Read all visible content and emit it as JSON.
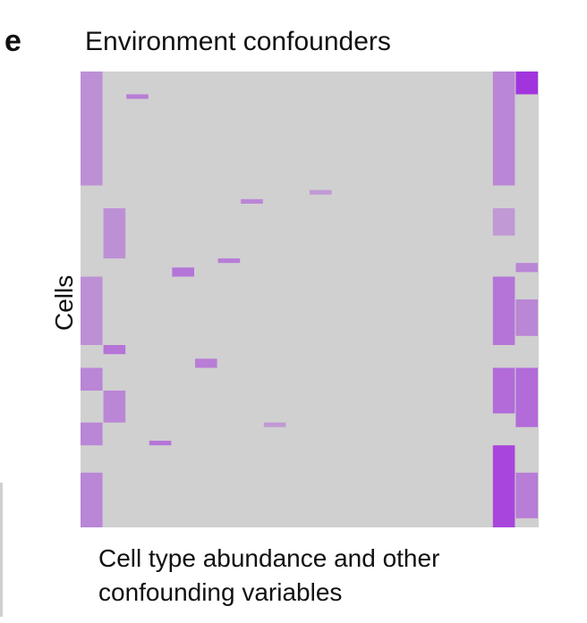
{
  "panel_letter": "e",
  "title": "Environment confounders",
  "ylabel": "Cells",
  "xlabel": [
    "Cell type abundance and other",
    "confounding variables"
  ],
  "colors": {
    "background": "#d0d0d0",
    "low": "#d8b6e8",
    "mid": "#c890e0",
    "high": "#9a18e0"
  },
  "chart_data": {
    "type": "heatmap",
    "title": "Environment confounders",
    "xlabel": "Cell type abundance and other confounding variables",
    "ylabel": "Cells",
    "n_rows": 100,
    "n_cols": 20,
    "value_range": [
      0,
      1
    ],
    "blocks": [
      {
        "col": 0,
        "rows": [
          0,
          25
        ],
        "value": 0.35
      },
      {
        "col": 1,
        "rows": [
          30,
          41
        ],
        "value": 0.35
      },
      {
        "col": 0,
        "rows": [
          45,
          60
        ],
        "value": 0.35
      },
      {
        "col": 1,
        "rows": [
          60,
          62
        ],
        "value": 0.5
      },
      {
        "col": 0,
        "rows": [
          65,
          70
        ],
        "value": 0.4
      },
      {
        "col": 1,
        "rows": [
          70,
          77
        ],
        "value": 0.4
      },
      {
        "col": 0,
        "rows": [
          77,
          82
        ],
        "value": 0.4
      },
      {
        "col": 0,
        "rows": [
          88,
          100
        ],
        "value": 0.4
      },
      {
        "col": 2,
        "rows": [
          5,
          6
        ],
        "value": 0.45
      },
      {
        "col": 4,
        "rows": [
          43,
          45
        ],
        "value": 0.5
      },
      {
        "col": 5,
        "rows": [
          63,
          65
        ],
        "value": 0.45
      },
      {
        "col": 3,
        "rows": [
          81,
          82
        ],
        "value": 0.5
      },
      {
        "col": 6,
        "rows": [
          41,
          42
        ],
        "value": 0.45
      },
      {
        "col": 7,
        "rows": [
          28,
          29
        ],
        "value": 0.4
      },
      {
        "col": 8,
        "rows": [
          77,
          78
        ],
        "value": 0.3
      },
      {
        "col": 10,
        "rows": [
          26,
          27
        ],
        "value": 0.3
      },
      {
        "col": 18,
        "rows": [
          0,
          25
        ],
        "value": 0.4
      },
      {
        "col": 18,
        "rows": [
          30,
          36
        ],
        "value": 0.3
      },
      {
        "col": 18,
        "rows": [
          45,
          60
        ],
        "value": 0.5
      },
      {
        "col": 18,
        "rows": [
          65,
          75
        ],
        "value": 0.55
      },
      {
        "col": 18,
        "rows": [
          82,
          100
        ],
        "value": 0.75
      },
      {
        "col": 19,
        "rows": [
          0,
          5
        ],
        "value": 0.85
      },
      {
        "col": 19,
        "rows": [
          42,
          44
        ],
        "value": 0.4
      },
      {
        "col": 19,
        "rows": [
          50,
          58
        ],
        "value": 0.4
      },
      {
        "col": 19,
        "rows": [
          65,
          78
        ],
        "value": 0.55
      },
      {
        "col": 19,
        "rows": [
          88,
          98
        ],
        "value": 0.45
      }
    ],
    "legend": false,
    "grid": false
  }
}
